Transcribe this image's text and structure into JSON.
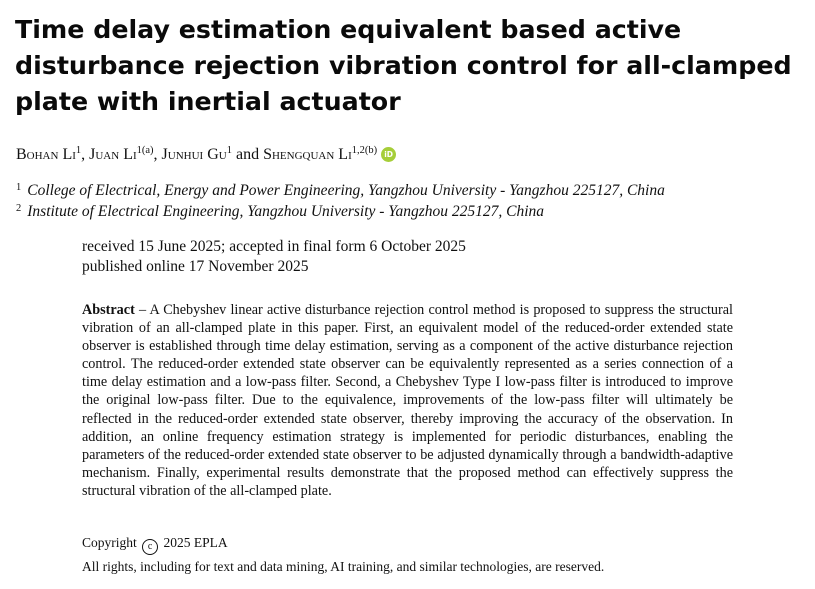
{
  "title": "Time delay estimation equivalent based active disturbance rejection vibration control for all-clamped plate with inertial actuator",
  "authors": [
    {
      "name": "Bohan Li",
      "sup": "1"
    },
    {
      "name": "Juan Li",
      "sup": "1(a)"
    },
    {
      "name": "Junhui Gu",
      "sup": "1"
    },
    {
      "name": "Shengquan Li",
      "sup": "1,2(b)"
    }
  ],
  "author_sep": ",",
  "author_and": "and",
  "orcid_icon": "iD",
  "affiliations": [
    {
      "num": "1",
      "text": "College of Electrical, Energy and Power Engineering, Yangzhou University - Yangzhou 225127, China"
    },
    {
      "num": "2",
      "text": "Institute of Electrical Engineering, Yangzhou University - Yangzhou 225127, China"
    }
  ],
  "dates": {
    "line1": "received 15 June 2025; accepted in final form 6 October 2025",
    "line2": "published online 17 November 2025"
  },
  "abstract": {
    "label": "Abstract",
    "dash": " – ",
    "text": "A Chebyshev linear active disturbance rejection control method is proposed to suppress the structural vibration of an all-clamped plate in this paper. First, an equivalent model of the reduced-order extended state observer is established through time delay estimation, serving as a component of the active disturbance rejection control. The reduced-order extended state observer can be equivalently represented as a series connection of a time delay estimation and a low-pass filter. Second, a Chebyshev Type I low-pass filter is introduced to improve the original low-pass filter. Due to the equivalence, improvements of the low-pass filter will ultimately be reflected in the reduced-order extended state observer, thereby improving the accuracy of the observation. In addition, an online frequency estimation strategy is implemented for periodic disturbances, enabling the parameters of the reduced-order extended state observer to be adjusted dynamically through a bandwidth-adaptive mechanism. Finally, experimental results demonstrate that the proposed method can effectively suppress the structural vibration of the all-clamped plate."
  },
  "copyright": {
    "prefix": "Copyright",
    "symbol": "c",
    "suffix": "2025 EPLA"
  },
  "rights": "All rights, including for text and data mining, AI training, and similar technologies, are reserved."
}
